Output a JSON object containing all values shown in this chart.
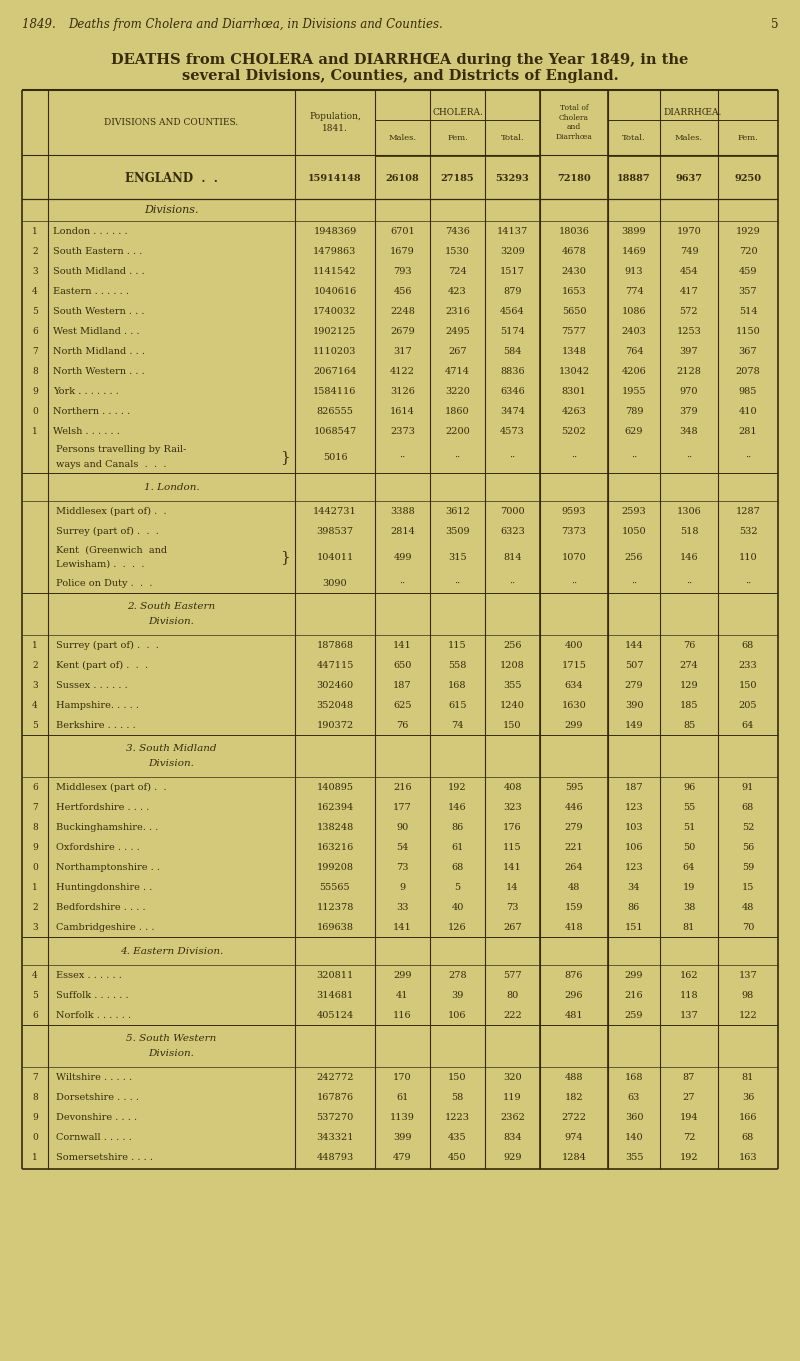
{
  "bg_color": "#d4c97a",
  "text_color": "#3a2a0a",
  "page_header_italic": "1849.  Deaths from Cholera and Diarrhœa, in Divisions and Counties.",
  "page_number": "5",
  "title1": "DEATHS from CHOLERA and DIARRHŒA during the Year 1849, in the",
  "title2": "several Divisions, Counties, and Districts of England.",
  "col_header_div": "DIVISIONS AND COUNTIES.",
  "col_header_pop": "Population,\n1841.",
  "col_header_cholera": "CHOLERA.",
  "col_header_total": "Total of\nCholera\nand\nDiarrhœa",
  "col_header_diarrhea": "DIARRHŒA.",
  "sub_headers": [
    "Males.",
    "Fem.",
    "Total.",
    "Total.",
    "Males.",
    "Fem."
  ],
  "rows": [
    {
      "num": "",
      "name": "ENGLAND  .  .",
      "pop": "15914148",
      "ch_m": "26108",
      "ch_f": "27185",
      "ch_t": "53293",
      "tot": "72180",
      "di_t": "18887",
      "di_m": "9637",
      "di_f": "9250",
      "type": "england"
    },
    {
      "num": "",
      "name": "Divisions.",
      "pop": "",
      "ch_m": "",
      "ch_f": "",
      "ch_t": "",
      "tot": "",
      "di_t": "",
      "di_m": "",
      "di_f": "",
      "type": "divisions_hdr"
    },
    {
      "num": "1",
      "name": "London . . . . . .",
      "pop": "1948369",
      "ch_m": "6701",
      "ch_f": "7436",
      "ch_t": "14137",
      "tot": "18036",
      "di_t": "3899",
      "di_m": "1970",
      "di_f": "1929",
      "type": "division"
    },
    {
      "num": "2",
      "name": "South Eastern . . .",
      "pop": "1479863",
      "ch_m": "1679",
      "ch_f": "1530",
      "ch_t": "3209",
      "tot": "4678",
      "di_t": "1469",
      "di_m": "749",
      "di_f": "720",
      "type": "division"
    },
    {
      "num": "3",
      "name": "South Midland . . .",
      "pop": "1141542",
      "ch_m": "793",
      "ch_f": "724",
      "ch_t": "1517",
      "tot": "2430",
      "di_t": "913",
      "di_m": "454",
      "di_f": "459",
      "type": "division"
    },
    {
      "num": "4",
      "name": "Eastern . . . . . .",
      "pop": "1040616",
      "ch_m": "456",
      "ch_f": "423",
      "ch_t": "879",
      "tot": "1653",
      "di_t": "774",
      "di_m": "417",
      "di_f": "357",
      "type": "division"
    },
    {
      "num": "5",
      "name": "South Western . . .",
      "pop": "1740032",
      "ch_m": "2248",
      "ch_f": "2316",
      "ch_t": "4564",
      "tot": "5650",
      "di_t": "1086",
      "di_m": "572",
      "di_f": "514",
      "type": "division"
    },
    {
      "num": "6",
      "name": "West Midland . . .",
      "pop": "1902125",
      "ch_m": "2679",
      "ch_f": "2495",
      "ch_t": "5174",
      "tot": "7577",
      "di_t": "2403",
      "di_m": "1253",
      "di_f": "1150",
      "type": "division"
    },
    {
      "num": "7",
      "name": "North Midland . . .",
      "pop": "1110203",
      "ch_m": "317",
      "ch_f": "267",
      "ch_t": "584",
      "tot": "1348",
      "di_t": "764",
      "di_m": "397",
      "di_f": "367",
      "type": "division"
    },
    {
      "num": "8",
      "name": "North Western . . .",
      "pop": "2067164",
      "ch_m": "4122",
      "ch_f": "4714",
      "ch_t": "8836",
      "tot": "13042",
      "di_t": "4206",
      "di_m": "2128",
      "di_f": "2078",
      "type": "division"
    },
    {
      "num": "9",
      "name": "York . . . . . . .",
      "pop": "1584116",
      "ch_m": "3126",
      "ch_f": "3220",
      "ch_t": "6346",
      "tot": "8301",
      "di_t": "1955",
      "di_m": "970",
      "di_f": "985",
      "type": "division"
    },
    {
      "num": "0",
      "name": "Northern . . . . .",
      "pop": "826555",
      "ch_m": "1614",
      "ch_f": "1860",
      "ch_t": "3474",
      "tot": "4263",
      "di_t": "789",
      "di_m": "379",
      "di_f": "410",
      "type": "division"
    },
    {
      "num": "1",
      "name": "Welsh . . . . . .",
      "pop": "1068547",
      "ch_m": "2373",
      "ch_f": "2200",
      "ch_t": "4573",
      "tot": "5202",
      "di_t": "629",
      "di_m": "348",
      "di_f": "281",
      "type": "division"
    },
    {
      "num": "",
      "name": "Persons travelling by Rail-\nways and Canals  .  .  .",
      "pop": "5016",
      "ch_m": "··",
      "ch_f": "··",
      "ch_t": "··",
      "tot": "··",
      "di_t": "··",
      "di_m": "··",
      "di_f": "··",
      "type": "brace_row"
    },
    {
      "num": "",
      "name": "1. London.",
      "pop": "",
      "ch_m": "",
      "ch_f": "",
      "ch_t": "",
      "tot": "",
      "di_t": "",
      "di_m": "",
      "di_f": "",
      "type": "section_hdr",
      "line2": ""
    },
    {
      "num": "",
      "name": "Middlesex (part of) .  .",
      "pop": "1442731",
      "ch_m": "3388",
      "ch_f": "3612",
      "ch_t": "7000",
      "tot": "9593",
      "di_t": "2593",
      "di_m": "1306",
      "di_f": "1287",
      "type": "county",
      "italic_part": ""
    },
    {
      "num": "",
      "name": "Surrey (part of) .  .  .",
      "pop": "398537",
      "ch_m": "2814",
      "ch_f": "3509",
      "ch_t": "6323",
      "tot": "7373",
      "di_t": "1050",
      "di_m": "518",
      "di_f": "532",
      "type": "county",
      "italic_part": ""
    },
    {
      "num": "",
      "name": "Kent  (Greenwich  and\nLewisham) .  .  .  .",
      "pop": "104011",
      "ch_m": "499",
      "ch_f": "315",
      "ch_t": "814",
      "tot": "1070",
      "di_t": "256",
      "di_m": "146",
      "di_f": "110",
      "type": "brace_row"
    },
    {
      "num": "",
      "name": "Police on Duty .  .  .",
      "pop": "3090",
      "ch_m": "··",
      "ch_f": "··",
      "ch_t": "··",
      "tot": "··",
      "di_t": "··",
      "di_m": "··",
      "di_f": "··",
      "type": "county"
    },
    {
      "num": "",
      "name": "2. South Eastern\nDivision.",
      "pop": "",
      "ch_m": "",
      "ch_f": "",
      "ch_t": "",
      "tot": "",
      "di_t": "",
      "di_m": "",
      "di_f": "",
      "type": "section_hdr2"
    },
    {
      "num": "1",
      "name": "Surrey (part of) .  .  .",
      "pop": "187868",
      "ch_m": "141",
      "ch_f": "115",
      "ch_t": "256",
      "tot": "400",
      "di_t": "144",
      "di_m": "76",
      "di_f": "68",
      "type": "county"
    },
    {
      "num": "2",
      "name": "Kent (part of) .  .  .",
      "pop": "447115",
      "ch_m": "650",
      "ch_f": "558",
      "ch_t": "1208",
      "tot": "1715",
      "di_t": "507",
      "di_m": "274",
      "di_f": "233",
      "type": "county"
    },
    {
      "num": "3",
      "name": "Sussex . . . . . .",
      "pop": "302460",
      "ch_m": "187",
      "ch_f": "168",
      "ch_t": "355",
      "tot": "634",
      "di_t": "279",
      "di_m": "129",
      "di_f": "150",
      "type": "county"
    },
    {
      "num": "4",
      "name": "Hampshire. . . . .",
      "pop": "352048",
      "ch_m": "625",
      "ch_f": "615",
      "ch_t": "1240",
      "tot": "1630",
      "di_t": "390",
      "di_m": "185",
      "di_f": "205",
      "type": "county"
    },
    {
      "num": "5",
      "name": "Berkshire . . . . .",
      "pop": "190372",
      "ch_m": "76",
      "ch_f": "74",
      "ch_t": "150",
      "tot": "299",
      "di_t": "149",
      "di_m": "85",
      "di_f": "64",
      "type": "county"
    },
    {
      "num": "",
      "name": "3. South Midland\nDivision.",
      "pop": "",
      "ch_m": "",
      "ch_f": "",
      "ch_t": "",
      "tot": "",
      "di_t": "",
      "di_m": "",
      "di_f": "",
      "type": "section_hdr2"
    },
    {
      "num": "6",
      "name": "Middlesex (part of) .  .",
      "pop": "140895",
      "ch_m": "216",
      "ch_f": "192",
      "ch_t": "408",
      "tot": "595",
      "di_t": "187",
      "di_m": "96",
      "di_f": "91",
      "type": "county"
    },
    {
      "num": "7",
      "name": "Hertfordshire . . . .",
      "pop": "162394",
      "ch_m": "177",
      "ch_f": "146",
      "ch_t": "323",
      "tot": "446",
      "di_t": "123",
      "di_m": "55",
      "di_f": "68",
      "type": "county"
    },
    {
      "num": "8",
      "name": "Buckinghamshire. . .",
      "pop": "138248",
      "ch_m": "90",
      "ch_f": "86",
      "ch_t": "176",
      "tot": "279",
      "di_t": "103",
      "di_m": "51",
      "di_f": "52",
      "type": "county"
    },
    {
      "num": "9",
      "name": "Oxfordshire . . . .",
      "pop": "163216",
      "ch_m": "54",
      "ch_f": "61",
      "ch_t": "115",
      "tot": "221",
      "di_t": "106",
      "di_m": "50",
      "di_f": "56",
      "type": "county"
    },
    {
      "num": "0",
      "name": "Northamptonshire . .",
      "pop": "199208",
      "ch_m": "73",
      "ch_f": "68",
      "ch_t": "141",
      "tot": "264",
      "di_t": "123",
      "di_m": "64",
      "di_f": "59",
      "type": "county"
    },
    {
      "num": "1",
      "name": "Huntingdonshire . .",
      "pop": "55565",
      "ch_m": "9",
      "ch_f": "5",
      "ch_t": "14",
      "tot": "48",
      "di_t": "34",
      "di_m": "19",
      "di_f": "15",
      "type": "county"
    },
    {
      "num": "2",
      "name": "Bedfordshire . . . .",
      "pop": "112378",
      "ch_m": "33",
      "ch_f": "40",
      "ch_t": "73",
      "tot": "159",
      "di_t": "86",
      "di_m": "38",
      "di_f": "48",
      "type": "county"
    },
    {
      "num": "3",
      "name": "Cambridgeshire . . .",
      "pop": "169638",
      "ch_m": "141",
      "ch_f": "126",
      "ch_t": "267",
      "tot": "418",
      "di_t": "151",
      "di_m": "81",
      "di_f": "70",
      "type": "county"
    },
    {
      "num": "",
      "name": "4. Eastern Division.",
      "pop": "",
      "ch_m": "",
      "ch_f": "",
      "ch_t": "",
      "tot": "",
      "di_t": "",
      "di_m": "",
      "di_f": "",
      "type": "section_hdr"
    },
    {
      "num": "4",
      "name": "Essex . . . . . .",
      "pop": "320811",
      "ch_m": "299",
      "ch_f": "278",
      "ch_t": "577",
      "tot": "876",
      "di_t": "299",
      "di_m": "162",
      "di_f": "137",
      "type": "county"
    },
    {
      "num": "5",
      "name": "Suffolk . . . . . .",
      "pop": "314681",
      "ch_m": "41",
      "ch_f": "39",
      "ch_t": "80",
      "tot": "296",
      "di_t": "216",
      "di_m": "118",
      "di_f": "98",
      "type": "county"
    },
    {
      "num": "6",
      "name": "Norfolk . . . . . .",
      "pop": "405124",
      "ch_m": "116",
      "ch_f": "106",
      "ch_t": "222",
      "tot": "481",
      "di_t": "259",
      "di_m": "137",
      "di_f": "122",
      "type": "county"
    },
    {
      "num": "",
      "name": "5. South Western\nDivision.",
      "pop": "",
      "ch_m": "",
      "ch_f": "",
      "ch_t": "",
      "tot": "",
      "di_t": "",
      "di_m": "",
      "di_f": "",
      "type": "section_hdr2"
    },
    {
      "num": "7",
      "name": "Wiltshire . . . . .",
      "pop": "242772",
      "ch_m": "170",
      "ch_f": "150",
      "ch_t": "320",
      "tot": "488",
      "di_t": "168",
      "di_m": "87",
      "di_f": "81",
      "type": "county"
    },
    {
      "num": "8",
      "name": "Dorsetshire . . . .",
      "pop": "167876",
      "ch_m": "61",
      "ch_f": "58",
      "ch_t": "119",
      "tot": "182",
      "di_t": "63",
      "di_m": "27",
      "di_f": "36",
      "type": "county"
    },
    {
      "num": "9",
      "name": "Devonshire . . . .",
      "pop": "537270",
      "ch_m": "1139",
      "ch_f": "1223",
      "ch_t": "2362",
      "tot": "2722",
      "di_t": "360",
      "di_m": "194",
      "di_f": "166",
      "type": "county"
    },
    {
      "num": "0",
      "name": "Cornwall . . . . .",
      "pop": "343321",
      "ch_m": "399",
      "ch_f": "435",
      "ch_t": "834",
      "tot": "974",
      "di_t": "140",
      "di_m": "72",
      "di_f": "68",
      "type": "county"
    },
    {
      "num": "1",
      "name": "Somersetshire . . . .",
      "pop": "448793",
      "ch_m": "479",
      "ch_f": "450",
      "ch_t": "929",
      "tot": "1284",
      "di_t": "355",
      "di_m": "192",
      "di_f": "163",
      "type": "county"
    }
  ]
}
